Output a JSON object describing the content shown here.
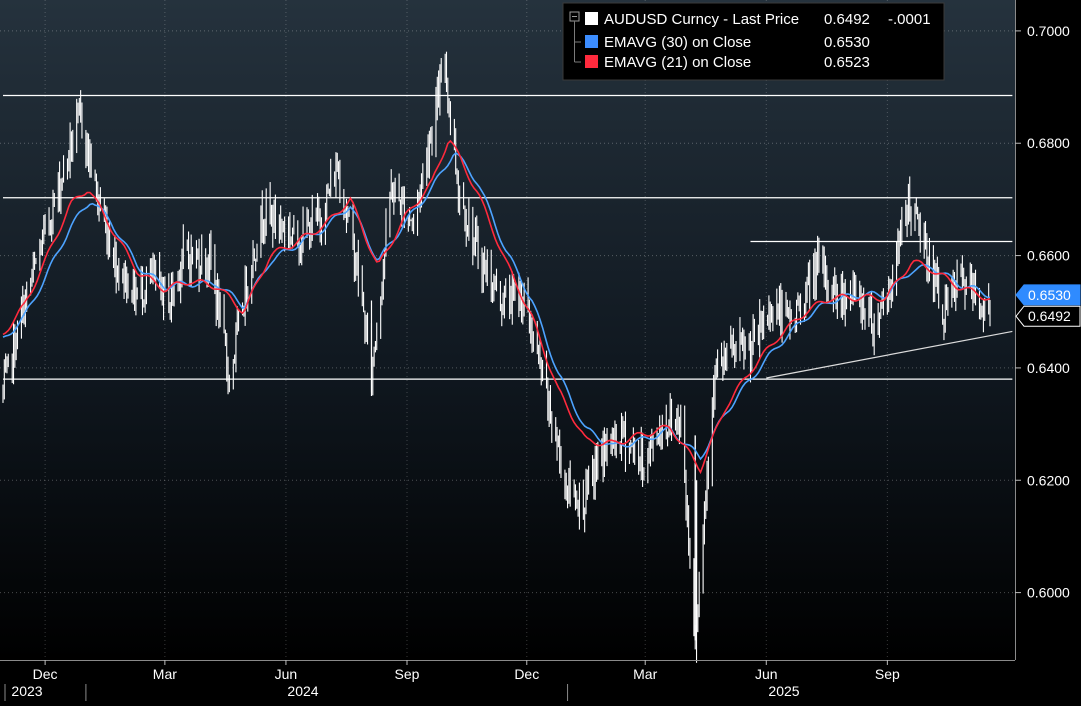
{
  "chart_data": {
    "type": "line",
    "instrument": "AUDUSD Curncy",
    "last_price_label": "Last Price",
    "last_price": "0.6492",
    "change": "-.0001",
    "ylim": [
      0.588,
      0.7055
    ],
    "yticks": [
      "0.7000",
      "0.6800",
      "0.6600",
      "0.6400",
      "0.6200",
      "0.6000"
    ],
    "x_month_labels": [
      "Dec",
      "Mar",
      "Jun",
      "Sep",
      "Dec",
      "Mar",
      "Jun",
      "Sep"
    ],
    "x_year_labels": [
      "2023",
      "2024",
      "2025"
    ],
    "x_start": "2023-10-30",
    "x_end": "2025-11-18",
    "series": [
      {
        "name": "AUDUSD Curncy - Last Price",
        "role": "bars",
        "color": "#ffffff",
        "points": [
          [
            "2023-10-30",
            0.6355
          ],
          [
            "2023-11-15",
            0.651
          ],
          [
            "2023-12-01",
            0.664
          ],
          [
            "2023-12-20",
            0.679
          ],
          [
            "2023-12-28",
            0.685
          ],
          [
            "2024-01-10",
            0.67
          ],
          [
            "2024-01-25",
            0.658
          ],
          [
            "2024-02-08",
            0.653
          ],
          [
            "2024-02-20",
            0.656
          ],
          [
            "2024-03-05",
            0.652
          ],
          [
            "2024-03-15",
            0.66
          ],
          [
            "2024-04-05",
            0.659
          ],
          [
            "2024-04-19",
            0.638
          ],
          [
            "2024-05-03",
            0.656
          ],
          [
            "2024-05-15",
            0.668
          ],
          [
            "2024-06-10",
            0.663
          ],
          [
            "2024-06-28",
            0.667
          ],
          [
            "2024-07-10",
            0.676
          ],
          [
            "2024-07-25",
            0.658
          ],
          [
            "2024-08-05",
            0.639
          ],
          [
            "2024-08-20",
            0.672
          ],
          [
            "2024-09-06",
            0.666
          ],
          [
            "2024-09-20",
            0.683
          ],
          [
            "2024-09-30",
            0.694
          ],
          [
            "2024-10-10",
            0.672
          ],
          [
            "2024-10-25",
            0.66
          ],
          [
            "2024-11-12",
            0.652
          ],
          [
            "2024-11-28",
            0.653
          ],
          [
            "2024-12-13",
            0.638
          ],
          [
            "2024-12-31",
            0.619
          ],
          [
            "2025-01-13",
            0.616
          ],
          [
            "2025-01-27",
            0.625
          ],
          [
            "2025-02-12",
            0.628
          ],
          [
            "2025-02-28",
            0.623
          ],
          [
            "2025-03-14",
            0.63
          ],
          [
            "2025-03-28",
            0.631
          ],
          [
            "2025-04-08",
            0.592
          ],
          [
            "2025-04-22",
            0.638
          ],
          [
            "2025-05-06",
            0.643
          ],
          [
            "2025-05-20",
            0.643
          ],
          [
            "2025-06-05",
            0.651
          ],
          [
            "2025-06-20",
            0.648
          ],
          [
            "2025-07-10",
            0.658
          ],
          [
            "2025-07-25",
            0.653
          ],
          [
            "2025-08-08",
            0.653
          ],
          [
            "2025-08-22",
            0.648
          ],
          [
            "2025-09-05",
            0.656
          ],
          [
            "2025-09-17",
            0.67
          ],
          [
            "2025-09-30",
            0.661
          ],
          [
            "2025-10-14",
            0.65
          ],
          [
            "2025-10-27",
            0.656
          ],
          [
            "2025-11-18",
            0.6492
          ]
        ]
      },
      {
        "name": "EMAVG (30) on Close",
        "value": "0.6530",
        "color": "#4da3ff",
        "points": [
          [
            "2023-10-30",
            0.645
          ],
          [
            "2023-11-15",
            0.649
          ],
          [
            "2023-12-01",
            0.656
          ],
          [
            "2023-12-20",
            0.665
          ],
          [
            "2024-01-05",
            0.67
          ],
          [
            "2024-01-20",
            0.666
          ],
          [
            "2024-02-10",
            0.658
          ],
          [
            "2024-03-01",
            0.6545
          ],
          [
            "2024-03-20",
            0.655
          ],
          [
            "2024-04-10",
            0.655
          ],
          [
            "2024-04-30",
            0.651
          ],
          [
            "2024-05-20",
            0.659
          ],
          [
            "2024-06-10",
            0.662
          ],
          [
            "2024-07-01",
            0.665
          ],
          [
            "2024-07-20",
            0.669
          ],
          [
            "2024-08-10",
            0.659
          ],
          [
            "2024-08-31",
            0.666
          ],
          [
            "2024-09-20",
            0.672
          ],
          [
            "2024-10-07",
            0.6785
          ],
          [
            "2024-10-25",
            0.673
          ],
          [
            "2024-11-15",
            0.661
          ],
          [
            "2024-12-05",
            0.652
          ],
          [
            "2024-12-25",
            0.639
          ],
          [
            "2025-01-15",
            0.629
          ],
          [
            "2025-02-05",
            0.626
          ],
          [
            "2025-02-25",
            0.627
          ],
          [
            "2025-03-20",
            0.629
          ],
          [
            "2025-04-12",
            0.624
          ],
          [
            "2025-05-01",
            0.632
          ],
          [
            "2025-05-20",
            0.638
          ],
          [
            "2025-06-10",
            0.644
          ],
          [
            "2025-07-01",
            0.649
          ],
          [
            "2025-07-20",
            0.652
          ],
          [
            "2025-08-10",
            0.653
          ],
          [
            "2025-08-31",
            0.653
          ],
          [
            "2025-09-20",
            0.6575
          ],
          [
            "2025-10-05",
            0.658
          ],
          [
            "2025-10-25",
            0.655
          ],
          [
            "2025-11-18",
            0.653
          ]
        ]
      },
      {
        "name": "EMAVG (21) on Close",
        "value": "0.6523",
        "color": "#ff2a3d",
        "points": [
          [
            "2023-10-30",
            0.646
          ],
          [
            "2023-11-15",
            0.651
          ],
          [
            "2023-12-01",
            0.659
          ],
          [
            "2023-12-20",
            0.669
          ],
          [
            "2024-01-03",
            0.672
          ],
          [
            "2024-01-20",
            0.665
          ],
          [
            "2024-02-10",
            0.657
          ],
          [
            "2024-03-01",
            0.654
          ],
          [
            "2024-03-20",
            0.6555
          ],
          [
            "2024-04-10",
            0.6545
          ],
          [
            "2024-04-30",
            0.65
          ],
          [
            "2024-05-20",
            0.66
          ],
          [
            "2024-06-10",
            0.6625
          ],
          [
            "2024-07-01",
            0.6655
          ],
          [
            "2024-07-20",
            0.67
          ],
          [
            "2024-08-10",
            0.658
          ],
          [
            "2024-08-31",
            0.667
          ],
          [
            "2024-09-20",
            0.673
          ],
          [
            "2024-10-03",
            0.681
          ],
          [
            "2024-10-25",
            0.671
          ],
          [
            "2024-11-15",
            0.659
          ],
          [
            "2024-12-05",
            0.649
          ],
          [
            "2024-12-25",
            0.636
          ],
          [
            "2025-01-15",
            0.627
          ],
          [
            "2025-02-05",
            0.6265
          ],
          [
            "2025-02-25",
            0.628
          ],
          [
            "2025-03-20",
            0.6295
          ],
          [
            "2025-04-12",
            0.622
          ],
          [
            "2025-05-01",
            0.633
          ],
          [
            "2025-05-20",
            0.6395
          ],
          [
            "2025-06-10",
            0.6455
          ],
          [
            "2025-07-01",
            0.65
          ],
          [
            "2025-07-20",
            0.6525
          ],
          [
            "2025-08-10",
            0.6525
          ],
          [
            "2025-08-31",
            0.6525
          ],
          [
            "2025-09-20",
            0.659
          ],
          [
            "2025-10-05",
            0.6575
          ],
          [
            "2025-10-25",
            0.6545
          ],
          [
            "2025-11-18",
            0.6523
          ]
        ]
      }
    ],
    "horizontal_lines": [
      {
        "y": 0.6885,
        "from": "2023-10-30",
        "to": "2025-12-05"
      },
      {
        "y": 0.6703,
        "from": "2023-10-30",
        "to": "2025-12-05"
      },
      {
        "y": 0.638,
        "from": "2023-10-30",
        "to": "2025-12-05"
      },
      {
        "y": 0.6625,
        "from": "2025-05-20",
        "to": "2025-12-05"
      }
    ],
    "trendline": {
      "from": [
        "2025-06-01",
        0.6382
      ],
      "to": [
        "2025-12-05",
        0.6465
      ]
    },
    "value_tags": [
      {
        "text": "0.6530",
        "y": 0.653,
        "style": "blue"
      },
      {
        "text": "0.6492",
        "y": 0.6492,
        "style": "white"
      }
    ],
    "grid": true,
    "legend_position": "top-right"
  },
  "legend": {
    "row1_name": "AUDUSD Curncy - Last Price",
    "row1_price": "0.6492",
    "row1_change": "-.0001",
    "row2_name": "EMAVG (30)  on Close",
    "row2_value": "0.6530",
    "row3_name": "EMAVG (21)  on Close",
    "row3_value": "0.6523",
    "white": "#ffffff",
    "blue": "#3c8dff",
    "red": "#ff2a3d"
  }
}
